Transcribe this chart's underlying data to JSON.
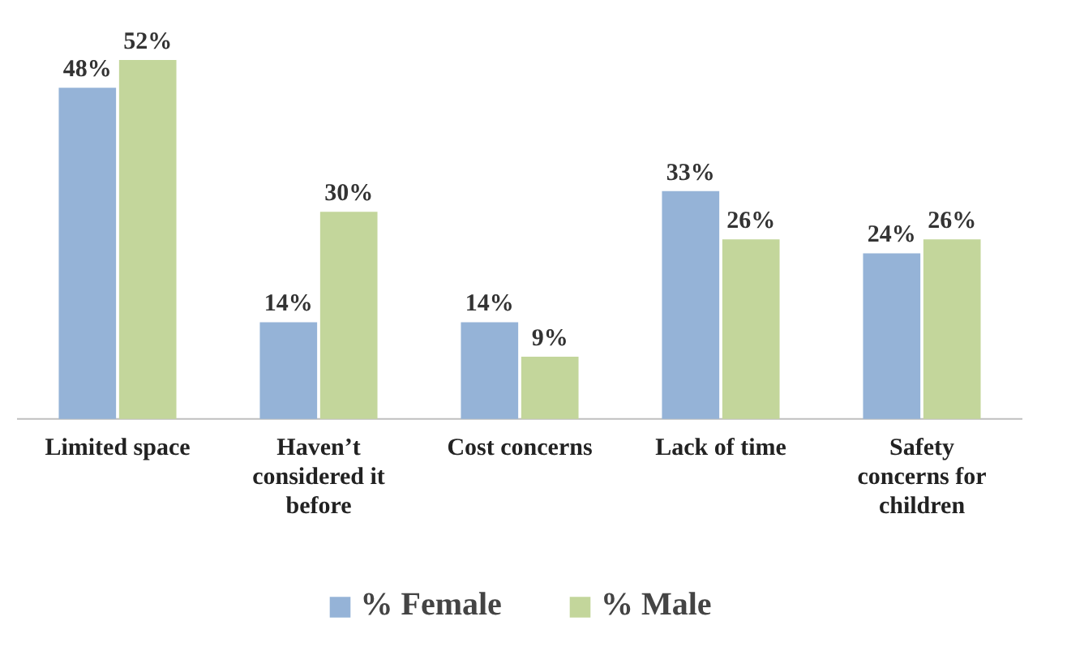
{
  "chart_data": {
    "type": "bar",
    "categories": [
      "Limited space",
      "Haven’t considered it before",
      "Cost concerns",
      "Lack of time",
      "Safety concerns for children"
    ],
    "series": [
      {
        "name": "% Female",
        "color": "#95b3d7",
        "values": [
          48,
          14,
          14,
          33,
          24
        ],
        "value_labels": [
          "48%",
          "14%",
          "14%",
          "33%",
          "24%"
        ]
      },
      {
        "name": "% Male",
        "color": "#c3d69b",
        "values": [
          52,
          30,
          9,
          26,
          26
        ],
        "value_labels": [
          "52%",
          "30%",
          "9%",
          "26%",
          "26%"
        ]
      }
    ],
    "legend": "bottom"
  }
}
